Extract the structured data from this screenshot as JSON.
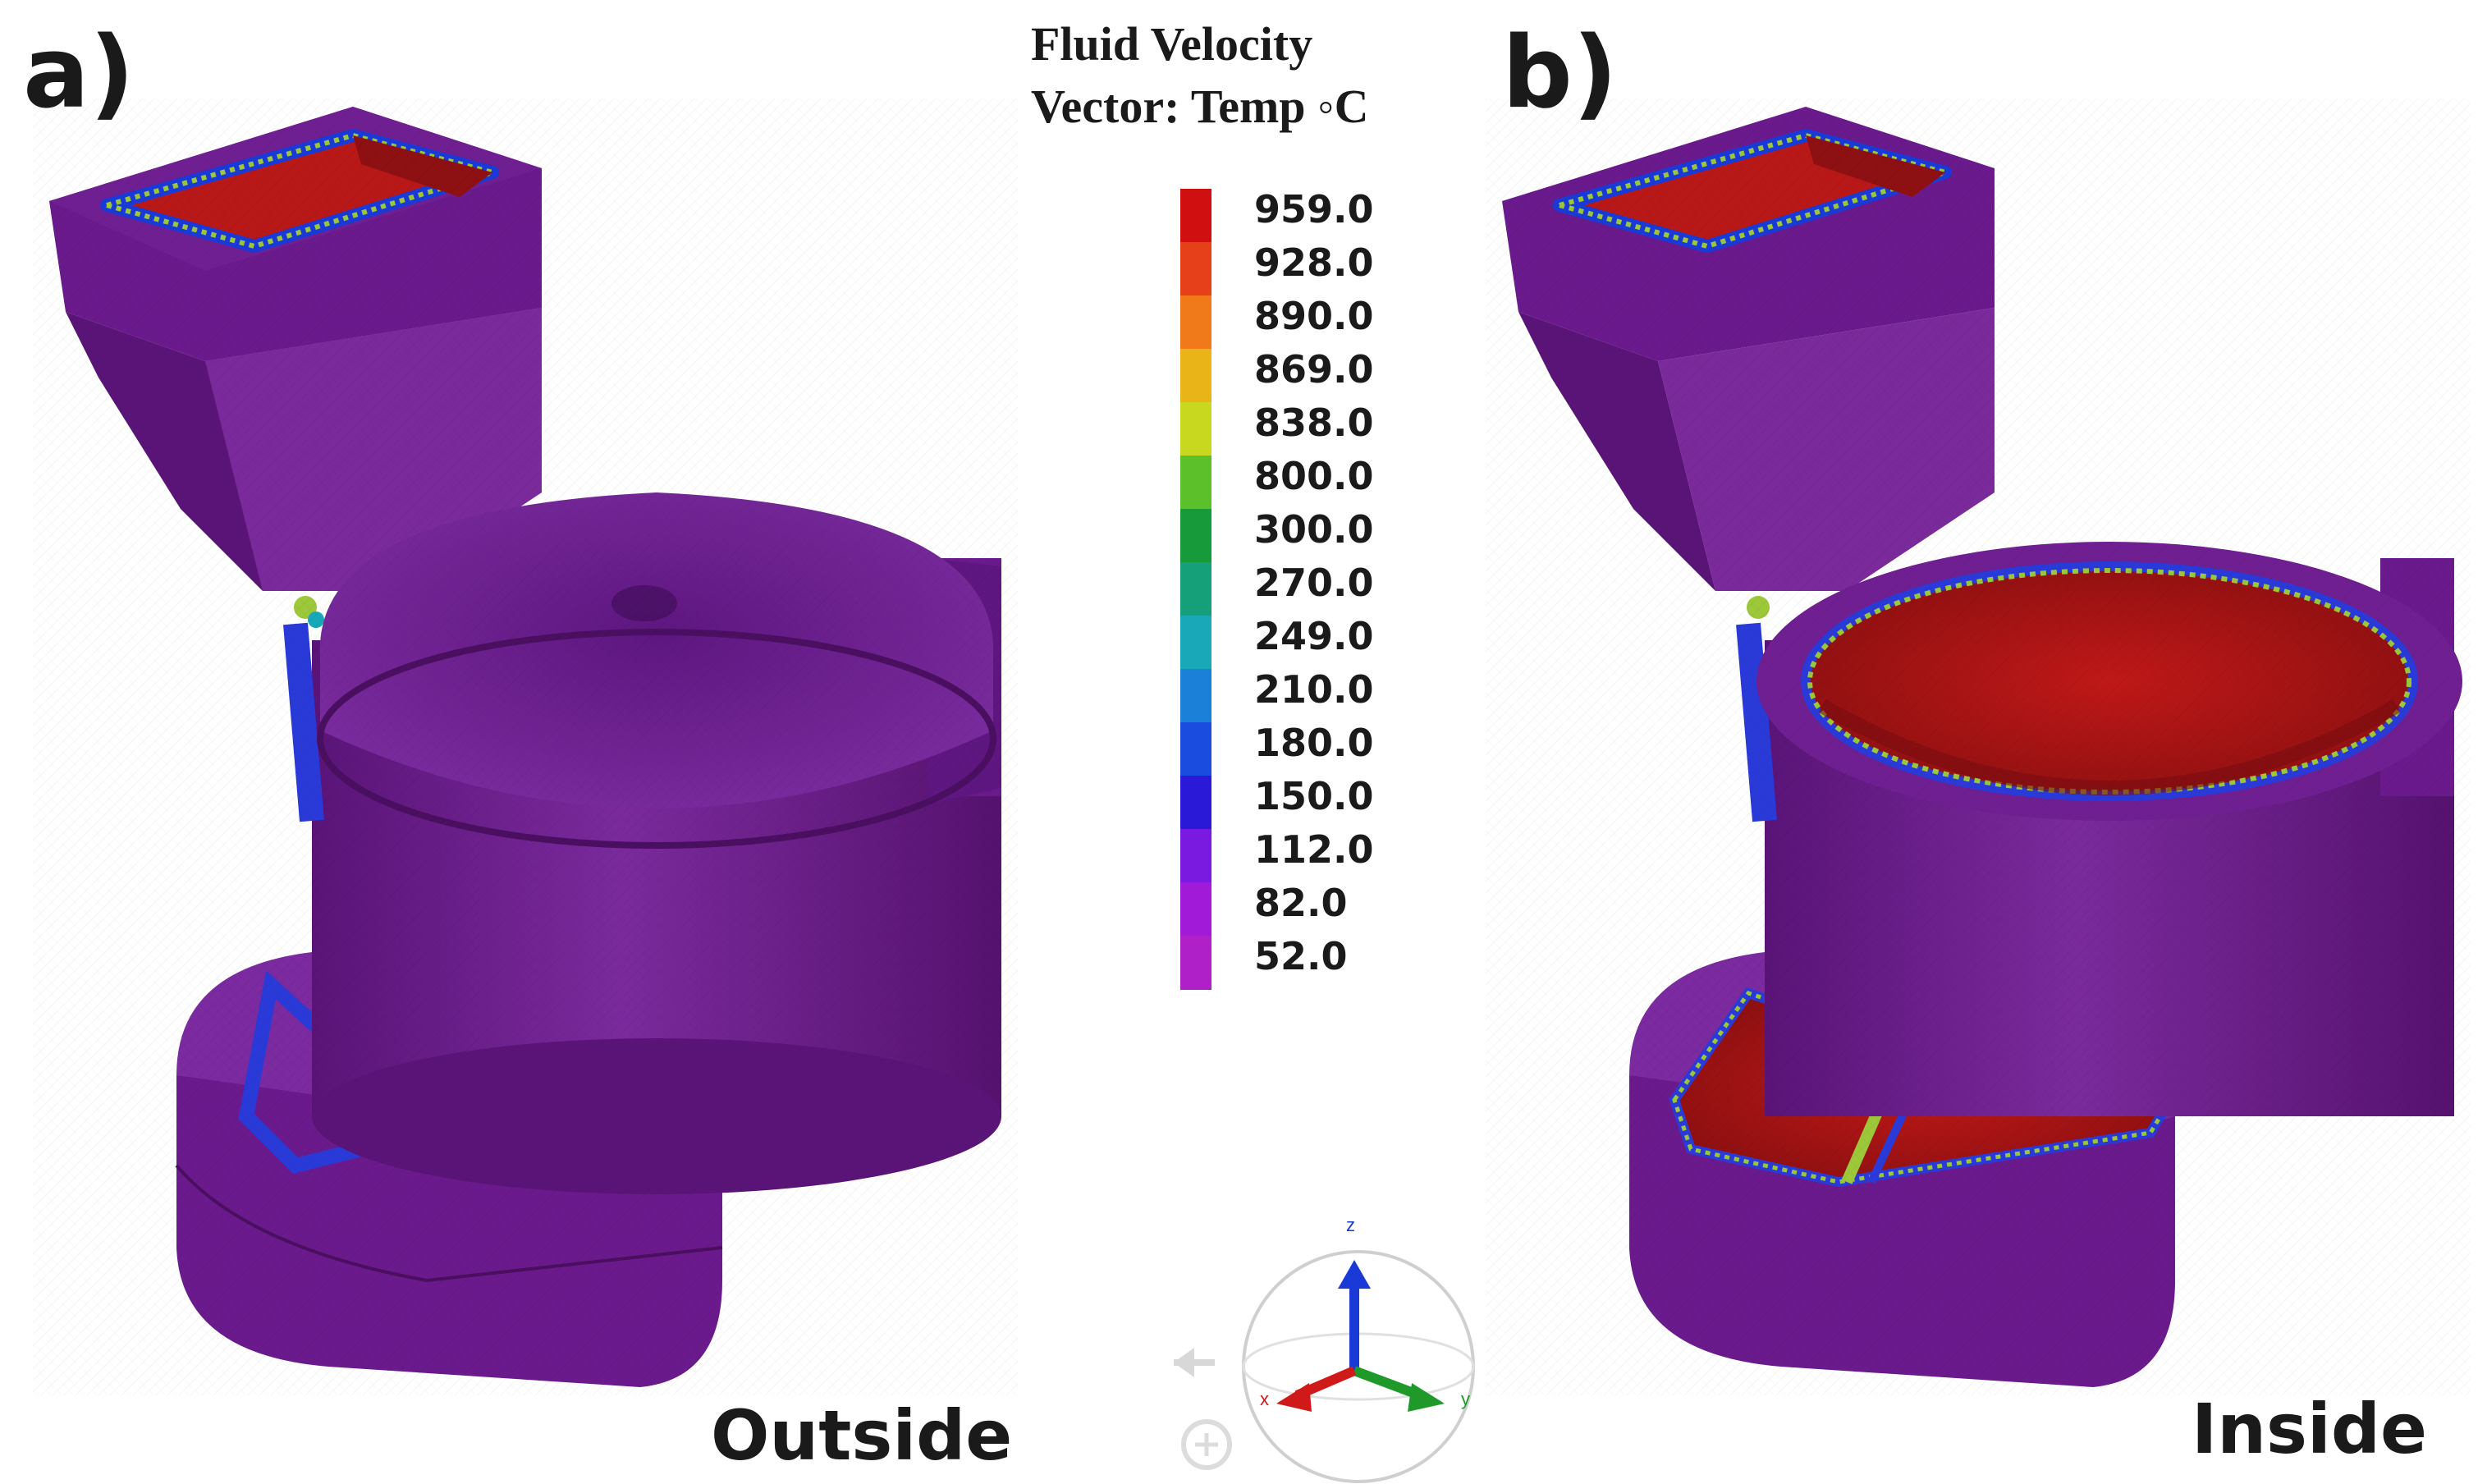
{
  "panels": [
    {
      "label": "a)",
      "caption": "Outside"
    },
    {
      "label": "b)",
      "caption": "Inside"
    }
  ],
  "legend": {
    "title_line1": "Fluid Velocity",
    "title_line2": "Vector: Temp ◦C",
    "values": [
      "959.0",
      "928.0",
      "890.0",
      "869.0",
      "838.0",
      "800.0",
      "300.0",
      "270.0",
      "249.0",
      "210.0",
      "180.0",
      "150.0",
      "112.0",
      "82.0",
      "52.0"
    ],
    "colors": [
      "#d01010",
      "#e5401a",
      "#f07a1a",
      "#e8b418",
      "#c8d81e",
      "#5cc02a",
      "#169a3a",
      "#16a07a",
      "#18a8b8",
      "#1a80d8",
      "#1a4ce0",
      "#2a1ad8",
      "#7a1ae0",
      "#a01ad8",
      "#b020c8"
    ]
  },
  "axis_triad": {
    "z": "z",
    "x": "x",
    "y": "y"
  },
  "colors": {
    "body_purple": "#6a1a8c",
    "hot_red": "#b81818",
    "edge_green": "#9cc83a",
    "edge_blue": "#2a3ad8"
  }
}
